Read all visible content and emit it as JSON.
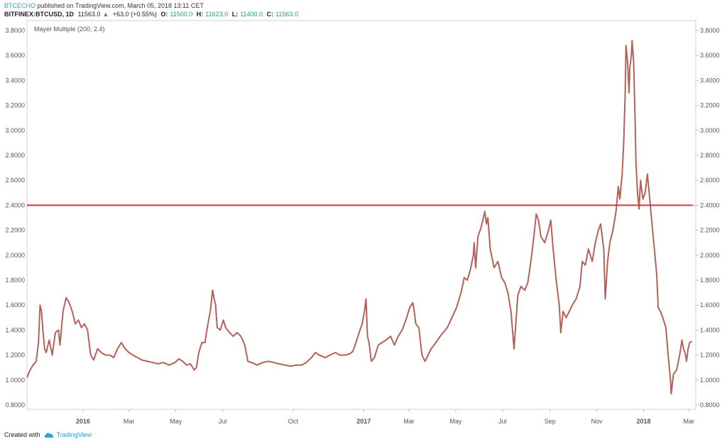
{
  "header": {
    "author": "BTCECHO",
    "published": "published on TradingView.com, March 05, 2018 13:11 CET",
    "symbol": "BITFINEX:BTCUSD, 1D",
    "last": "11563.0",
    "up_arrow": "▲",
    "change": "+63.0 (+0.55%)",
    "o_label": "O:",
    "o_value": "11500.0",
    "h_label": "H:",
    "h_value": "11623.0",
    "l_label": "L:",
    "l_value": "11400.0",
    "c_label": "C:",
    "c_value": "11563.0"
  },
  "footer": {
    "created_with": "Created with",
    "brand": "TradingView",
    "brand_icon": "tradingview-cloud-icon"
  },
  "colors": {
    "line": "#b5615a",
    "threshold": "#e03030",
    "axis_text": "#555555",
    "up": "#26a65b",
    "brand": "#2b9fd8"
  },
  "chart_data": {
    "type": "line",
    "indicator_label": "Mayer Multiple (200, 2.4)",
    "ylim": [
      0.8,
      3.8
    ],
    "yticks": [
      "0.8000",
      "1.0000",
      "1.2000",
      "1.4000",
      "1.6000",
      "1.8000",
      "2.0000",
      "2.2000",
      "2.4000",
      "2.6000",
      "2.8000",
      "3.0000",
      "3.2000",
      "3.4000",
      "3.6000",
      "3.8000"
    ],
    "x_range": [
      "2015-10-20",
      "2018-03-10"
    ],
    "xticks": [
      {
        "date": "2016-01-01",
        "label": "2016",
        "bold": true
      },
      {
        "date": "2016-03-01",
        "label": "Mar"
      },
      {
        "date": "2016-05-01",
        "label": "May"
      },
      {
        "date": "2016-07-01",
        "label": "Jul"
      },
      {
        "date": "2016-10-01",
        "label": "Oct"
      },
      {
        "date": "2017-01-01",
        "label": "2017",
        "bold": true
      },
      {
        "date": "2017-03-01",
        "label": "Mar"
      },
      {
        "date": "2017-05-01",
        "label": "May"
      },
      {
        "date": "2017-07-01",
        "label": "Jul"
      },
      {
        "date": "2017-09-01",
        "label": "Sep"
      },
      {
        "date": "2017-11-01",
        "label": "Nov"
      },
      {
        "date": "2018-01-01",
        "label": "2018",
        "bold": true
      },
      {
        "date": "2018-03-01",
        "label": "Mar"
      }
    ],
    "threshold": 2.4,
    "series": [
      {
        "points": [
          [
            "2015-10-20",
            1.02
          ],
          [
            "2015-10-24",
            1.08
          ],
          [
            "2015-10-28",
            1.12
          ],
          [
            "2015-11-01",
            1.15
          ],
          [
            "2015-11-04",
            1.3
          ],
          [
            "2015-11-06",
            1.6
          ],
          [
            "2015-11-08",
            1.55
          ],
          [
            "2015-11-10",
            1.38
          ],
          [
            "2015-11-12",
            1.25
          ],
          [
            "2015-11-14",
            1.22
          ],
          [
            "2015-11-18",
            1.32
          ],
          [
            "2015-11-22",
            1.2
          ],
          [
            "2015-11-26",
            1.38
          ],
          [
            "2015-11-30",
            1.4
          ],
          [
            "2015-12-02",
            1.28
          ],
          [
            "2015-12-06",
            1.55
          ],
          [
            "2015-12-10",
            1.66
          ],
          [
            "2015-12-14",
            1.62
          ],
          [
            "2015-12-18",
            1.55
          ],
          [
            "2015-12-22",
            1.45
          ],
          [
            "2015-12-26",
            1.48
          ],
          [
            "2015-12-30",
            1.42
          ],
          [
            "2016-01-03",
            1.45
          ],
          [
            "2016-01-07",
            1.4
          ],
          [
            "2016-01-11",
            1.2
          ],
          [
            "2016-01-15",
            1.16
          ],
          [
            "2016-01-20",
            1.25
          ],
          [
            "2016-01-25",
            1.22
          ],
          [
            "2016-01-30",
            1.2
          ],
          [
            "2016-02-05",
            1.2
          ],
          [
            "2016-02-10",
            1.18
          ],
          [
            "2016-02-15",
            1.25
          ],
          [
            "2016-02-20",
            1.3
          ],
          [
            "2016-02-25",
            1.25
          ],
          [
            "2016-03-01",
            1.22
          ],
          [
            "2016-03-06",
            1.2
          ],
          [
            "2016-03-12",
            1.18
          ],
          [
            "2016-03-18",
            1.16
          ],
          [
            "2016-03-25",
            1.15
          ],
          [
            "2016-04-01",
            1.14
          ],
          [
            "2016-04-08",
            1.13
          ],
          [
            "2016-04-15",
            1.14
          ],
          [
            "2016-04-22",
            1.12
          ],
          [
            "2016-04-30",
            1.14
          ],
          [
            "2016-05-05",
            1.17
          ],
          [
            "2016-05-10",
            1.15
          ],
          [
            "2016-05-15",
            1.12
          ],
          [
            "2016-05-20",
            1.13
          ],
          [
            "2016-05-25",
            1.08
          ],
          [
            "2016-05-28",
            1.1
          ],
          [
            "2016-05-31",
            1.22
          ],
          [
            "2016-06-04",
            1.3
          ],
          [
            "2016-06-08",
            1.3
          ],
          [
            "2016-06-12",
            1.45
          ],
          [
            "2016-06-15",
            1.55
          ],
          [
            "2016-06-18",
            1.72
          ],
          [
            "2016-06-20",
            1.65
          ],
          [
            "2016-06-22",
            1.6
          ],
          [
            "2016-06-24",
            1.42
          ],
          [
            "2016-06-28",
            1.4
          ],
          [
            "2016-07-02",
            1.48
          ],
          [
            "2016-07-05",
            1.42
          ],
          [
            "2016-07-10",
            1.38
          ],
          [
            "2016-07-15",
            1.35
          ],
          [
            "2016-07-20",
            1.38
          ],
          [
            "2016-07-25",
            1.35
          ],
          [
            "2016-07-30",
            1.28
          ],
          [
            "2016-08-03",
            1.15
          ],
          [
            "2016-08-08",
            1.14
          ],
          [
            "2016-08-15",
            1.12
          ],
          [
            "2016-08-22",
            1.14
          ],
          [
            "2016-08-30",
            1.15
          ],
          [
            "2016-09-06",
            1.14
          ],
          [
            "2016-09-12",
            1.13
          ],
          [
            "2016-09-20",
            1.12
          ],
          [
            "2016-09-28",
            1.11
          ],
          [
            "2016-10-05",
            1.12
          ],
          [
            "2016-10-12",
            1.12
          ],
          [
            "2016-10-18",
            1.14
          ],
          [
            "2016-10-25",
            1.18
          ],
          [
            "2016-10-30",
            1.22
          ],
          [
            "2016-11-04",
            1.2
          ],
          [
            "2016-11-08",
            1.19
          ],
          [
            "2016-11-12",
            1.18
          ],
          [
            "2016-11-18",
            1.2
          ],
          [
            "2016-11-25",
            1.22
          ],
          [
            "2016-12-01",
            1.2
          ],
          [
            "2016-12-08",
            1.2
          ],
          [
            "2016-12-14",
            1.21
          ],
          [
            "2016-12-18",
            1.23
          ],
          [
            "2016-12-22",
            1.3
          ],
          [
            "2016-12-26",
            1.38
          ],
          [
            "2016-12-30",
            1.45
          ],
          [
            "2017-01-02",
            1.55
          ],
          [
            "2017-01-04",
            1.65
          ],
          [
            "2017-01-06",
            1.35
          ],
          [
            "2017-01-08",
            1.3
          ],
          [
            "2017-01-11",
            1.15
          ],
          [
            "2017-01-15",
            1.18
          ],
          [
            "2017-01-20",
            1.28
          ],
          [
            "2017-01-25",
            1.3
          ],
          [
            "2017-01-30",
            1.32
          ],
          [
            "2017-02-05",
            1.35
          ],
          [
            "2017-02-10",
            1.28
          ],
          [
            "2017-02-15",
            1.35
          ],
          [
            "2017-02-20",
            1.4
          ],
          [
            "2017-02-25",
            1.48
          ],
          [
            "2017-03-02",
            1.58
          ],
          [
            "2017-03-06",
            1.62
          ],
          [
            "2017-03-08",
            1.55
          ],
          [
            "2017-03-10",
            1.45
          ],
          [
            "2017-03-14",
            1.42
          ],
          [
            "2017-03-18",
            1.2
          ],
          [
            "2017-03-22",
            1.15
          ],
          [
            "2017-03-26",
            1.2
          ],
          [
            "2017-03-30",
            1.25
          ],
          [
            "2017-04-05",
            1.3
          ],
          [
            "2017-04-12",
            1.36
          ],
          [
            "2017-04-20",
            1.42
          ],
          [
            "2017-04-26",
            1.5
          ],
          [
            "2017-05-02",
            1.58
          ],
          [
            "2017-05-08",
            1.7
          ],
          [
            "2017-05-12",
            1.82
          ],
          [
            "2017-05-16",
            1.8
          ],
          [
            "2017-05-20",
            1.88
          ],
          [
            "2017-05-24",
            2.0
          ],
          [
            "2017-05-25",
            2.1
          ],
          [
            "2017-05-27",
            1.9
          ],
          [
            "2017-05-30",
            2.15
          ],
          [
            "2017-06-03",
            2.22
          ],
          [
            "2017-06-06",
            2.3
          ],
          [
            "2017-06-08",
            2.35
          ],
          [
            "2017-06-10",
            2.25
          ],
          [
            "2017-06-12",
            2.3
          ],
          [
            "2017-06-15",
            2.05
          ],
          [
            "2017-06-20",
            1.9
          ],
          [
            "2017-06-25",
            1.95
          ],
          [
            "2017-06-30",
            1.82
          ],
          [
            "2017-07-04",
            1.78
          ],
          [
            "2017-07-08",
            1.7
          ],
          [
            "2017-07-12",
            1.55
          ],
          [
            "2017-07-16",
            1.25
          ],
          [
            "2017-07-18",
            1.42
          ],
          [
            "2017-07-21",
            1.68
          ],
          [
            "2017-07-25",
            1.75
          ],
          [
            "2017-07-30",
            1.72
          ],
          [
            "2017-08-03",
            1.78
          ],
          [
            "2017-08-07",
            1.95
          ],
          [
            "2017-08-10",
            2.1
          ],
          [
            "2017-08-14",
            2.33
          ],
          [
            "2017-08-17",
            2.28
          ],
          [
            "2017-08-20",
            2.15
          ],
          [
            "2017-08-25",
            2.1
          ],
          [
            "2017-08-30",
            2.2
          ],
          [
            "2017-09-02",
            2.28
          ],
          [
            "2017-09-05",
            2.05
          ],
          [
            "2017-09-09",
            1.8
          ],
          [
            "2017-09-13",
            1.6
          ],
          [
            "2017-09-15",
            1.38
          ],
          [
            "2017-09-18",
            1.55
          ],
          [
            "2017-09-22",
            1.5
          ],
          [
            "2017-09-26",
            1.55
          ],
          [
            "2017-09-30",
            1.6
          ],
          [
            "2017-10-05",
            1.65
          ],
          [
            "2017-10-10",
            1.75
          ],
          [
            "2017-10-13",
            1.95
          ],
          [
            "2017-10-17",
            1.92
          ],
          [
            "2017-10-21",
            2.05
          ],
          [
            "2017-10-26",
            1.95
          ],
          [
            "2017-10-30",
            2.1
          ],
          [
            "2017-11-03",
            2.2
          ],
          [
            "2017-11-06",
            2.25
          ],
          [
            "2017-11-10",
            2.05
          ],
          [
            "2017-11-12",
            1.65
          ],
          [
            "2017-11-15",
            1.95
          ],
          [
            "2017-11-18",
            2.1
          ],
          [
            "2017-11-22",
            2.2
          ],
          [
            "2017-11-26",
            2.35
          ],
          [
            "2017-11-29",
            2.55
          ],
          [
            "2017-12-01",
            2.45
          ],
          [
            "2017-12-04",
            2.65
          ],
          [
            "2017-12-06",
            2.9
          ],
          [
            "2017-12-08",
            3.3
          ],
          [
            "2017-12-09",
            3.68
          ],
          [
            "2017-12-11",
            3.55
          ],
          [
            "2017-12-13",
            3.3
          ],
          [
            "2017-12-14",
            3.5
          ],
          [
            "2017-12-16",
            3.6
          ],
          [
            "2017-12-17",
            3.72
          ],
          [
            "2017-12-19",
            3.55
          ],
          [
            "2017-12-21",
            3.05
          ],
          [
            "2017-12-22",
            2.75
          ],
          [
            "2017-12-24",
            2.5
          ],
          [
            "2017-12-26",
            2.37
          ],
          [
            "2017-12-28",
            2.6
          ],
          [
            "2017-12-31",
            2.45
          ],
          [
            "2018-01-03",
            2.5
          ],
          [
            "2018-01-06",
            2.65
          ],
          [
            "2018-01-09",
            2.45
          ],
          [
            "2018-01-12",
            2.25
          ],
          [
            "2018-01-15",
            2.05
          ],
          [
            "2018-01-18",
            1.85
          ],
          [
            "2018-01-20",
            1.58
          ],
          [
            "2018-01-23",
            1.55
          ],
          [
            "2018-01-26",
            1.5
          ],
          [
            "2018-01-30",
            1.42
          ],
          [
            "2018-02-02",
            1.2
          ],
          [
            "2018-02-05",
            1.0
          ],
          [
            "2018-02-06",
            0.89
          ],
          [
            "2018-02-09",
            1.05
          ],
          [
            "2018-02-13",
            1.08
          ],
          [
            "2018-02-17",
            1.2
          ],
          [
            "2018-02-20",
            1.32
          ],
          [
            "2018-02-22",
            1.25
          ],
          [
            "2018-02-24",
            1.22
          ],
          [
            "2018-02-26",
            1.15
          ],
          [
            "2018-02-28",
            1.25
          ],
          [
            "2018-03-02",
            1.3
          ],
          [
            "2018-03-05",
            1.31
          ]
        ]
      }
    ]
  }
}
